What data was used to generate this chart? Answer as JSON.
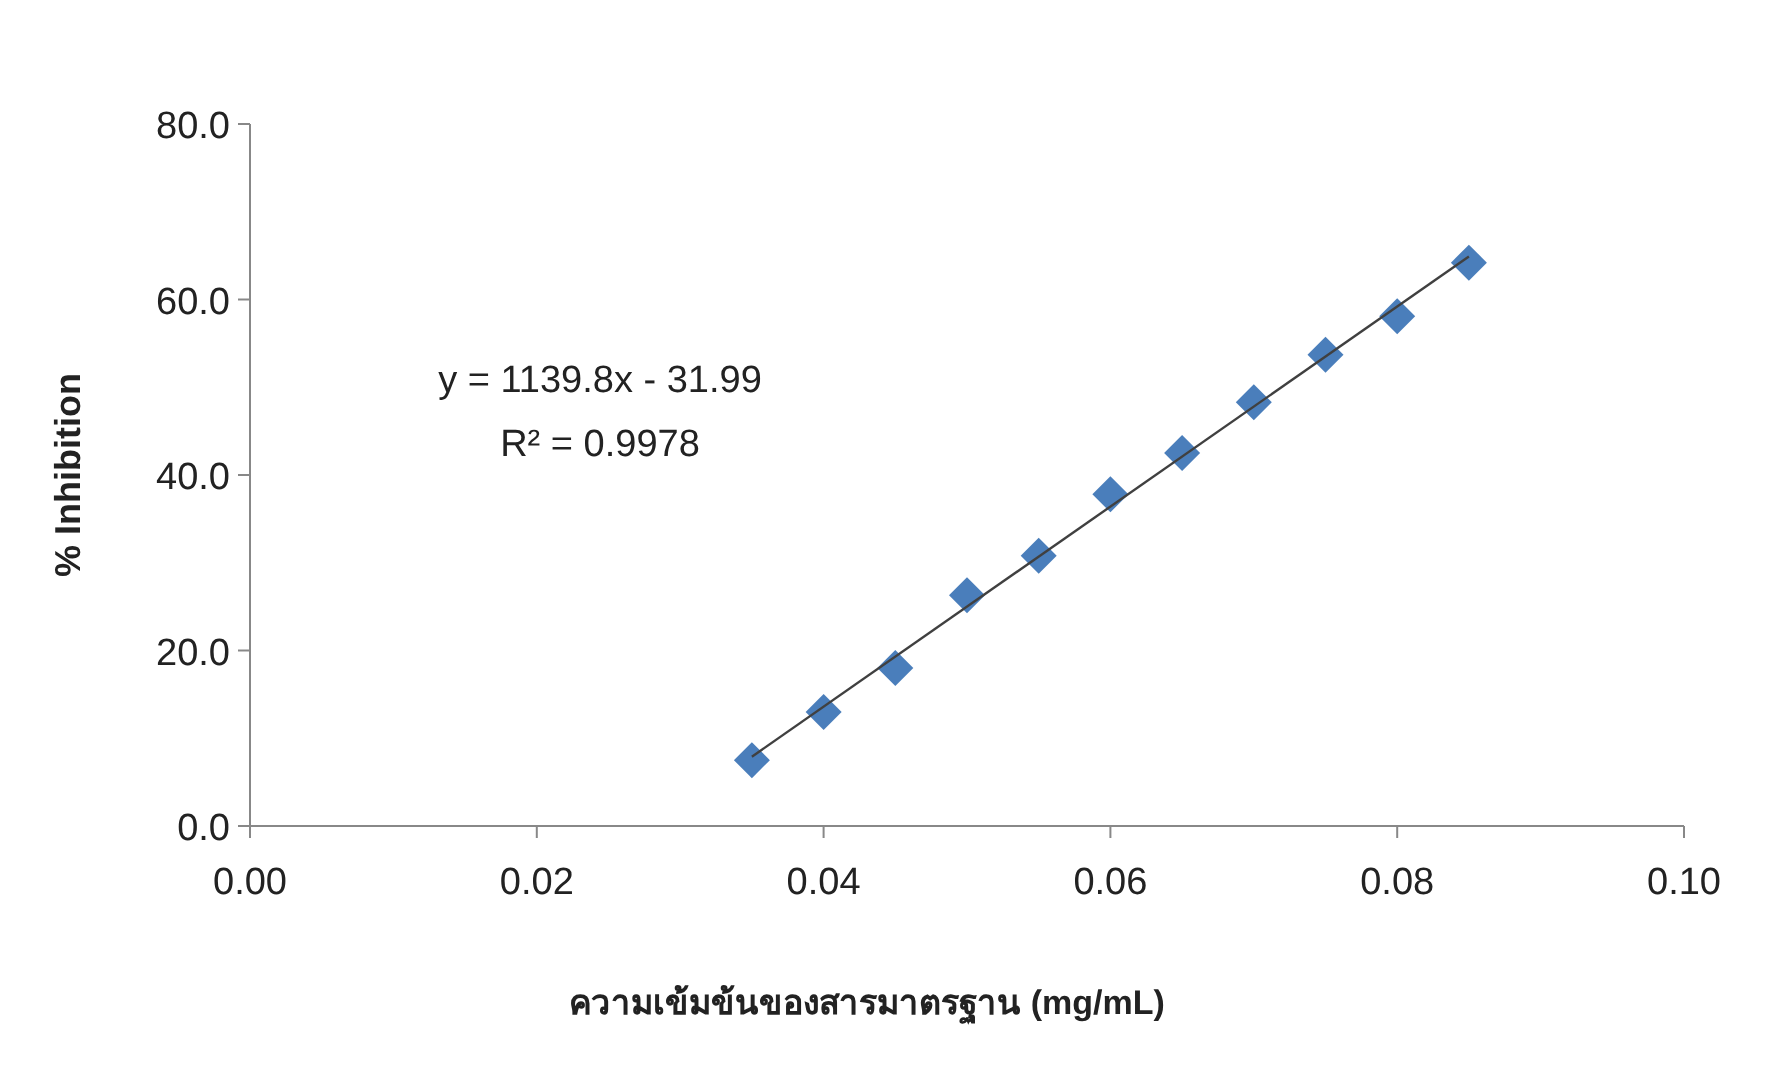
{
  "chart_data": {
    "type": "scatter",
    "xlabel": "ความเข้มข้นของสารมาตรฐาน (mg/mL)",
    "ylabel": "% Inhibition",
    "annotations": [
      "y = 1139.8x - 31.99",
      "R² = 0.9978"
    ],
    "xlim": [
      0,
      0.1
    ],
    "ylim": [
      0,
      80
    ],
    "xticks": [
      {
        "value": 0,
        "label": "0.00"
      },
      {
        "value": 0.02,
        "label": "0.02"
      },
      {
        "value": 0.04,
        "label": "0.04"
      },
      {
        "value": 0.06,
        "label": "0.06"
      },
      {
        "value": 0.08,
        "label": "0.08"
      },
      {
        "value": 0.1,
        "label": "0.10"
      }
    ],
    "yticks": [
      {
        "value": 0,
        "label": "0.0"
      },
      {
        "value": 20,
        "label": "20.0"
      },
      {
        "value": 40,
        "label": "40.0"
      },
      {
        "value": 60,
        "label": "60.0"
      },
      {
        "value": 80,
        "label": "80.0"
      }
    ],
    "grid": false,
    "series": [
      {
        "type": "scatter",
        "marker": "diamond",
        "color": "#4a7ebb",
        "x": [
          0.035,
          0.04,
          0.045,
          0.05,
          0.055,
          0.06,
          0.065,
          0.07,
          0.075,
          0.08,
          0.085
        ],
        "values": [
          7.5,
          13.0,
          18.0,
          26.3,
          30.8,
          37.8,
          42.5,
          48.3,
          53.7,
          58.1,
          64.2
        ]
      },
      {
        "type": "line",
        "marker": "none",
        "color": "#404040",
        "x": [
          0.035,
          0.085
        ],
        "values": [
          7.9,
          64.9
        ]
      }
    ]
  }
}
